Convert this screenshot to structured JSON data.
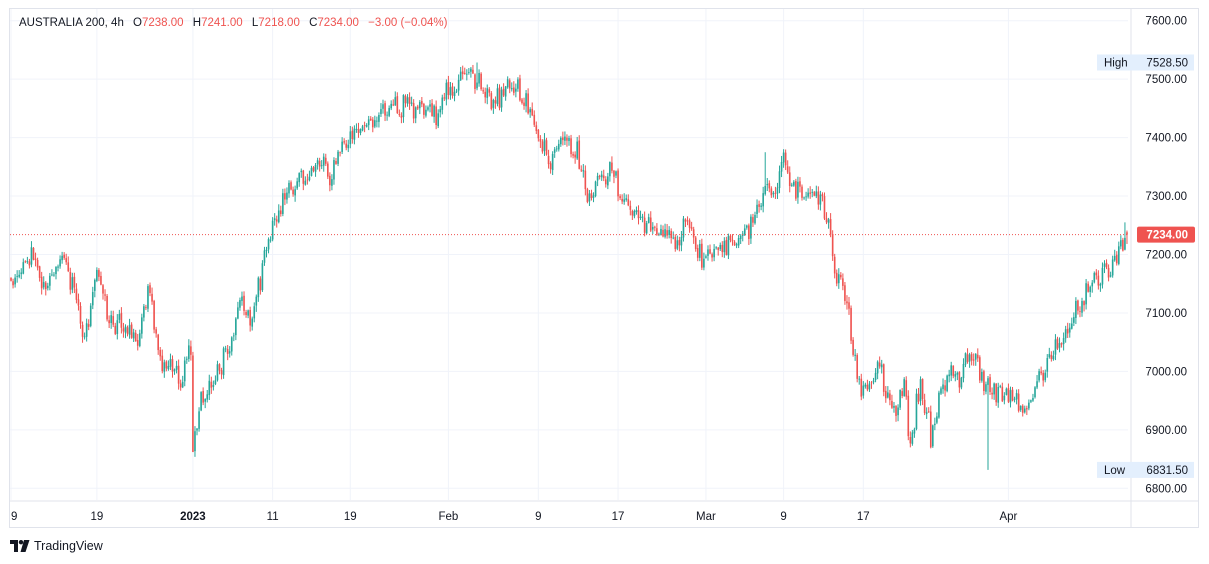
{
  "legend": {
    "symbol": "AUSTRALIA 200, 4h",
    "open_label": "O",
    "open": "7238.00",
    "high_label": "H",
    "high": "7241.00",
    "low_label": "L",
    "low": "7218.00",
    "close_label": "C",
    "close": "7234.00",
    "change": "−3.00 (−0.04%)"
  },
  "branding": {
    "name": "TradingView",
    "icon": "tradingview-logo-icon"
  },
  "colors": {
    "up": "#26a69a",
    "down": "#ef5350",
    "grid": "#f0f3fa",
    "axis_text": "#131722",
    "marker_bg": "#e3effd"
  },
  "chart_data": {
    "type": "candlestick",
    "title": "AUSTRALIA 200, 4h",
    "ylim": [
      6780,
      7620
    ],
    "y_ticks": [
      "7600.00",
      "7500.00",
      "7400.00",
      "7300.00",
      "7200.00",
      "7100.00",
      "7000.00",
      "6900.00",
      "6800.00"
    ],
    "x_ticks": [
      "9",
      "19",
      "2023",
      "11",
      "19",
      "Feb",
      "9",
      "17",
      "Mar",
      "9",
      "17",
      "Apr"
    ],
    "grid": true,
    "last_price": {
      "value": 7234.0,
      "label": "7234.00"
    },
    "high_marker": {
      "label": "High",
      "value": "7528.50"
    },
    "low_marker": {
      "label": "Low",
      "value": "6831.50"
    },
    "price_path": [
      [
        0,
        7140
      ],
      [
        4,
        7170
      ],
      [
        10,
        7210
      ],
      [
        14,
        7140
      ],
      [
        20,
        7160
      ],
      [
        24,
        7200
      ],
      [
        31,
        7150
      ],
      [
        35,
        7050
      ],
      [
        43,
        7170
      ],
      [
        48,
        7080
      ],
      [
        57,
        7080
      ],
      [
        61,
        7040
      ],
      [
        67,
        7140
      ],
      [
        74,
        7010
      ],
      [
        80,
        7000
      ],
      [
        84,
        6980
      ],
      [
        88,
        7050
      ],
      [
        89,
        6870
      ],
      [
        92,
        6940
      ],
      [
        96,
        6960
      ],
      [
        101,
        7010
      ],
      [
        106,
        7030
      ],
      [
        112,
        7130
      ],
      [
        118,
        7090
      ],
      [
        123,
        7180
      ],
      [
        128,
        7250
      ],
      [
        134,
        7300
      ],
      [
        140,
        7330
      ],
      [
        144,
        7335
      ],
      [
        151,
        7360
      ],
      [
        156,
        7330
      ],
      [
        162,
        7390
      ],
      [
        168,
        7400
      ],
      [
        174,
        7430
      ],
      [
        180,
        7440
      ],
      [
        186,
        7460
      ],
      [
        192,
        7455
      ],
      [
        198,
        7450
      ],
      [
        204,
        7470
      ],
      [
        208,
        7440
      ],
      [
        212,
        7470
      ],
      [
        218,
        7490
      ],
      [
        224,
        7510
      ],
      [
        228,
        7500
      ],
      [
        232,
        7480
      ],
      [
        238,
        7460
      ],
      [
        242,
        7480
      ],
      [
        247,
        7480
      ],
      [
        252,
        7460
      ],
      [
        258,
        7400
      ],
      [
        264,
        7360
      ],
      [
        270,
        7400
      ],
      [
        277,
        7380
      ],
      [
        282,
        7280
      ],
      [
        288,
        7330
      ],
      [
        294,
        7350
      ],
      [
        298,
        7300
      ],
      [
        302,
        7270
      ],
      [
        308,
        7250
      ],
      [
        314,
        7240
      ],
      [
        320,
        7230
      ],
      [
        326,
        7220
      ],
      [
        331,
        7260
      ],
      [
        336,
        7200
      ],
      [
        342,
        7200
      ],
      [
        348,
        7220
      ],
      [
        353,
        7210
      ],
      [
        358,
        7230
      ],
      [
        366,
        7270
      ],
      [
        369,
        7320
      ],
      [
        374,
        7310
      ],
      [
        378,
        7360
      ],
      [
        384,
        7300
      ],
      [
        390,
        7320
      ],
      [
        396,
        7290
      ],
      [
        400,
        7240
      ],
      [
        403,
        7160
      ],
      [
        408,
        7130
      ],
      [
        412,
        7040
      ],
      [
        416,
        6970
      ],
      [
        422,
        6990
      ],
      [
        424,
        7030
      ],
      [
        428,
        6960
      ],
      [
        432,
        6940
      ],
      [
        437,
        6970
      ],
      [
        440,
        6860
      ],
      [
        443,
        6950
      ],
      [
        446,
        6970
      ],
      [
        450,
        6890
      ],
      [
        455,
        6960
      ],
      [
        460,
        7010
      ],
      [
        464,
        6990
      ],
      [
        470,
        7030
      ],
      [
        474,
        7000
      ],
      [
        478,
        6980
      ],
      [
        482,
        6970
      ],
      [
        486,
        6960
      ],
      [
        490,
        6960
      ],
      [
        494,
        6950
      ],
      [
        496,
        6930
      ],
      [
        500,
        6970
      ],
      [
        504,
        6980
      ],
      [
        509,
        7020
      ],
      [
        512,
        7040
      ],
      [
        516,
        7060
      ],
      [
        520,
        7100
      ],
      [
        526,
        7130
      ],
      [
        530,
        7150
      ],
      [
        534,
        7170
      ],
      [
        538,
        7180
      ],
      [
        542,
        7210
      ],
      [
        546,
        7234
      ]
    ],
    "extreme_bars": [
      {
        "bar": 89,
        "low": 6865
      },
      {
        "bar": 228,
        "high": 7528.5
      },
      {
        "bar": 369,
        "high": 7375
      },
      {
        "bar": 478,
        "low": 6831.5
      },
      {
        "bar": 545,
        "high": 7255
      }
    ]
  }
}
